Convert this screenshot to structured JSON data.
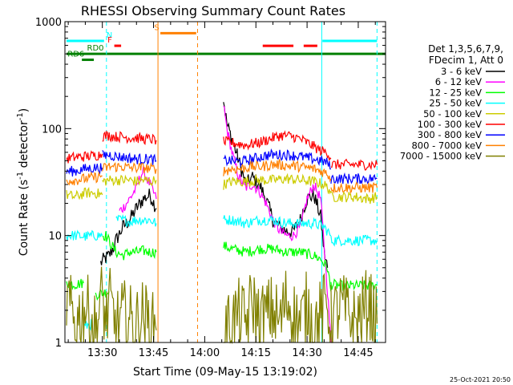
{
  "chart_data": {
    "type": "line",
    "title": "RHESSI Observing Summary Count Rates",
    "xlabel": "Start Time (09-May-15 13:19:02)",
    "ylabel_main": "Count Rate (s",
    "ylabel_exp1": "-1",
    "ylabel_mid": " detector",
    "ylabel_exp2": "-1",
    "ylabel_end": ")",
    "timestamp": "25-Oct-2021 20:50",
    "y_scale": "log",
    "ylim": [
      1,
      1000
    ],
    "xlim_minutes": [
      19.03,
      113.0
    ],
    "x_ticks": [
      {
        "min": 30,
        "label": "13:30"
      },
      {
        "min": 45,
        "label": "13:45"
      },
      {
        "min": 60,
        "label": "14:00"
      },
      {
        "min": 75,
        "label": "14:15"
      },
      {
        "min": 90,
        "label": "14:30"
      },
      {
        "min": 105,
        "label": "14:45"
      }
    ],
    "y_ticks": [
      {
        "value": 1,
        "label": "1"
      },
      {
        "value": 10,
        "label": "10"
      },
      {
        "value": 100,
        "label": "100"
      },
      {
        "value": 1000,
        "label": "1000"
      }
    ],
    "legend_header": [
      "Det 1,3,5,6,7,9,",
      "FDecim 1, Att 0"
    ],
    "legend_placement": "right",
    "series": [
      {
        "name": "3 - 6 keV",
        "color": "#000000",
        "segments": [
          {
            "x": [
              19.5,
              30,
              32.2
            ],
            "y": [
              null,
              null,
              null
            ]
          },
          {
            "x": [
              29.5,
              30.5,
              32,
              33.5,
              34,
              36,
              38,
              40,
              42,
              44,
              45.8
            ],
            "y": [
              5.5,
              6,
              6.5,
              8,
              9,
              12,
              14,
              18,
              22,
              24,
              18
            ]
          },
          {
            "x": [
              65.5,
              66.5,
              68,
              70,
              72,
              74,
              76,
              78,
              80,
              82,
              84,
              86,
              88,
              89,
              90,
              92,
              94,
              95,
              96
            ],
            "y": [
              190,
              110,
              80,
              50,
              30,
              35,
              30,
              22,
              14,
              12,
              11,
              11,
              14,
              18,
              22,
              24,
              15,
              7,
              5
            ]
          }
        ]
      },
      {
        "name": "6 - 12 keV",
        "color": "#ff00ff",
        "segments": [
          {
            "x": [
              35,
              36,
              38,
              40,
              41,
              42,
              43,
              44,
              45.8
            ],
            "y": [
              17,
              18,
              22,
              28,
              35,
              40,
              34,
              30,
              22
            ]
          },
          {
            "x": [
              65.5,
              66.5,
              68,
              70,
              72,
              74,
              76,
              78,
              80,
              82,
              84,
              86,
              88,
              89,
              90,
              92,
              94,
              95,
              96,
              97
            ],
            "y": [
              170,
              100,
              60,
              35,
              28,
              30,
              26,
              20,
              14,
              11,
              10,
              10,
              12,
              16,
              22,
              30,
              22,
              8,
              3,
              1
            ]
          }
        ]
      },
      {
        "name": "12 - 25 keV",
        "color": "#00ff00",
        "segments": [
          {
            "x": [
              19.5,
              22,
              24.5
            ],
            "y": [
              3.6,
              3.5,
              3.6
            ]
          },
          {
            "x": [
              28,
              30,
              32
            ],
            "y": [
              2.8,
              2.9,
              3.0
            ]
          },
          {
            "x": [
              30,
              31,
              34,
              36,
              38,
              40,
              42,
              44,
              45.8
            ],
            "y": [
              10,
              10,
              7,
              6.5,
              7,
              7,
              7.2,
              7,
              7
            ]
          },
          {
            "x": [
              65.5,
              68,
              72,
              76,
              80,
              84,
              88,
              92,
              94,
              96,
              97
            ],
            "y": [
              8,
              7.5,
              7,
              7.5,
              7.5,
              7,
              7,
              6.5,
              6,
              5,
              3
            ]
          },
          {
            "x": [
              97,
              100,
              104,
              108,
              110.5
            ],
            "y": [
              3.5,
              3.4,
              3.4,
              3.4,
              3.4
            ]
          }
        ]
      },
      {
        "name": "25 - 50 keV",
        "color": "#00ffff",
        "segments": [
          {
            "x": [
              19.5,
              22,
              25,
              28,
              30
            ],
            "y": [
              10,
              10,
              9.8,
              10,
              10
            ]
          },
          {
            "x": [
              24.5,
              27
            ],
            "y": [
              1.4,
              1.5
            ]
          },
          {
            "x": [
              34,
              36,
              38,
              40,
              42,
              44,
              45.8
            ],
            "y": [
              14,
              14,
              13.5,
              14,
              14,
              14,
              13
            ]
          },
          {
            "x": [
              65.5,
              68,
              72,
              76,
              80,
              84,
              88,
              92,
              95,
              97
            ],
            "y": [
              14,
              14,
              13,
              14,
              14,
              13,
              13,
              13,
              12,
              10
            ]
          },
          {
            "x": [
              97,
              100,
              104,
              108,
              110.5
            ],
            "y": [
              9,
              9,
              9,
              9,
              9
            ]
          }
        ]
      },
      {
        "name": "50 - 100 keV",
        "color": "#cccc00",
        "segments": [
          {
            "x": [
              19.5,
              22,
              25,
              28,
              30
            ],
            "y": [
              24,
              23,
              25,
              25,
              24
            ]
          },
          {
            "x": [
              30,
              32,
              34,
              36,
              38,
              40,
              42,
              44,
              45.8
            ],
            "y": [
              32,
              33,
              33,
              33,
              33,
              32,
              33,
              32,
              33
            ]
          },
          {
            "x": [
              65.5,
              68,
              72,
              76,
              80,
              84,
              88,
              92,
              95,
              97
            ],
            "y": [
              30,
              32,
              32,
              33,
              33,
              34,
              33,
              32,
              30,
              26
            ]
          },
          {
            "x": [
              97,
              100,
              104,
              108,
              110.5
            ],
            "y": [
              23,
              23,
              23,
              22,
              23
            ]
          }
        ]
      },
      {
        "name": "100 - 300 keV",
        "color": "#ff0000",
        "segments": [
          {
            "x": [
              19.5,
              22,
              25,
              28,
              30
            ],
            "y": [
              52,
              54,
              55,
              56,
              58
            ]
          },
          {
            "x": [
              30,
              32,
              34,
              36,
              38,
              40,
              42,
              44,
              45.8
            ],
            "y": [
              85,
              86,
              84,
              84,
              82,
              82,
              80,
              80,
              78
            ]
          },
          {
            "x": [
              65.5,
              68,
              70,
              72,
              74,
              76,
              78,
              80,
              82,
              84,
              86,
              88,
              90,
              92,
              94,
              96,
              97
            ],
            "y": [
              75,
              74,
              72,
              70,
              72,
              74,
              78,
              82,
              86,
              86,
              84,
              80,
              74,
              68,
              62,
              60,
              52
            ]
          },
          {
            "x": [
              97,
              100,
              104,
              108,
              110.5
            ],
            "y": [
              46,
              46,
              46,
              46,
              46
            ]
          }
        ]
      },
      {
        "name": "300 - 800 keV",
        "color": "#0000ff",
        "segments": [
          {
            "x": [
              19.5,
              22,
              25,
              28,
              30
            ],
            "y": [
              40,
              40,
              42,
              43,
              43
            ]
          },
          {
            "x": [
              30,
              32,
              34,
              36,
              38,
              40,
              42,
              44,
              45.8
            ],
            "y": [
              56,
              57,
              55,
              54,
              53,
              52,
              52,
              52,
              50
            ]
          },
          {
            "x": [
              65.5,
              68,
              70,
              72,
              74,
              76,
              78,
              80,
              82,
              84,
              86,
              88,
              90,
              92,
              94,
              96,
              97
            ],
            "y": [
              50,
              50,
              49,
              50,
              52,
              54,
              56,
              57,
              57,
              57,
              56,
              55,
              53,
              52,
              50,
              48,
              42
            ]
          },
          {
            "x": [
              97,
              100,
              104,
              108,
              110.5
            ],
            "y": [
              34,
              34,
              34,
              34,
              34
            ]
          }
        ]
      },
      {
        "name": "800 - 7000 keV",
        "color": "#ff8000",
        "segments": [
          {
            "x": [
              19.5,
              22,
              25,
              28,
              30
            ],
            "y": [
              33,
              33,
              34,
              35,
              36
            ]
          },
          {
            "x": [
              30,
              32,
              34,
              36,
              38,
              40,
              42,
              44,
              45.8
            ],
            "y": [
              42,
              44,
              44,
              44,
              43,
              43,
              43,
              42,
              42
            ]
          },
          {
            "x": [
              65.5,
              68,
              70,
              72,
              74,
              76,
              78,
              80,
              82,
              84,
              86,
              88,
              90,
              92,
              94,
              96,
              97
            ],
            "y": [
              40,
              42,
              42,
              43,
              44,
              44,
              45,
              46,
              46,
              45,
              45,
              44,
              43,
              42,
              40,
              38,
              34
            ]
          },
          {
            "x": [
              97,
              100,
              104,
              108,
              110.5
            ],
            "y": [
              28,
              28,
              28,
              28,
              28
            ]
          }
        ]
      },
      {
        "name": "7000 - 15000 keV",
        "color": "#808000",
        "segments": [
          {
            "x": [
              19.5,
              22,
              25,
              28,
              30,
              31,
              32,
              34,
              36,
              38,
              40,
              42,
              44,
              45.8
            ],
            "y": [
              2.5,
              1.5,
              2.2,
              1.3,
              2.8,
              1.5,
              2.4,
              1.4,
              1.8,
              1.6,
              1.5,
              1.8,
              1.4,
              1.3
            ]
          },
          {
            "x": [
              65.5,
              68,
              70,
              72,
              74,
              76,
              78,
              80,
              82,
              84,
              86,
              88,
              90,
              92,
              94,
              96,
              97
            ],
            "y": [
              1.2,
              1.6,
              1.8,
              1.5,
              2.5,
              1.6,
              1.8,
              2.0,
              1.5,
              2.6,
              1.8,
              1.5,
              2.2,
              1.4,
              1.8,
              2.4,
              1.3
            ]
          },
          {
            "x": [
              97,
              100,
              104,
              108,
              110.5
            ],
            "y": [
              1.6,
              2.2,
              1.5,
              2.4,
              1.5
            ]
          }
        ]
      }
    ],
    "flags": [
      {
        "label": "N",
        "color": "#00ffff",
        "y": 660,
        "segments": [
          [
            19.5,
            30.5
          ],
          [
            94.5,
            110.5
          ]
        ],
        "label_at": 31.2
      },
      {
        "label": "F",
        "color": "#ff0000",
        "y": 595,
        "segments": [
          [
            33.5,
            35.5
          ],
          [
            77,
            86
          ],
          [
            89,
            93
          ]
        ],
        "label_at": 31.5
      },
      {
        "label": "S",
        "color": "#ff8000",
        "y": 780,
        "segments": [
          [
            47,
            57.5
          ]
        ],
        "label_at": 45.2
      },
      {
        "label": "RD0",
        "color": "#008000",
        "y": 500,
        "segments": [
          [
            19.5,
            113
          ]
        ],
        "label_at": 25.5
      },
      {
        "label": "RD6",
        "color": "#008000",
        "y": 440,
        "segments": [
          [
            24,
            27.5
          ]
        ],
        "label_at": 19.8
      }
    ],
    "vlines": [
      {
        "x": 31.2,
        "color": "#00ffff",
        "dashed": true
      },
      {
        "x": 46.3,
        "color": "#ff8000",
        "dashed": false
      },
      {
        "x": 57.9,
        "color": "#ff8000",
        "dashed": true
      },
      {
        "x": 94.3,
        "color": "#00ffff",
        "dashed": false
      },
      {
        "x": 110.5,
        "color": "#00ffff",
        "dashed": true
      }
    ]
  }
}
